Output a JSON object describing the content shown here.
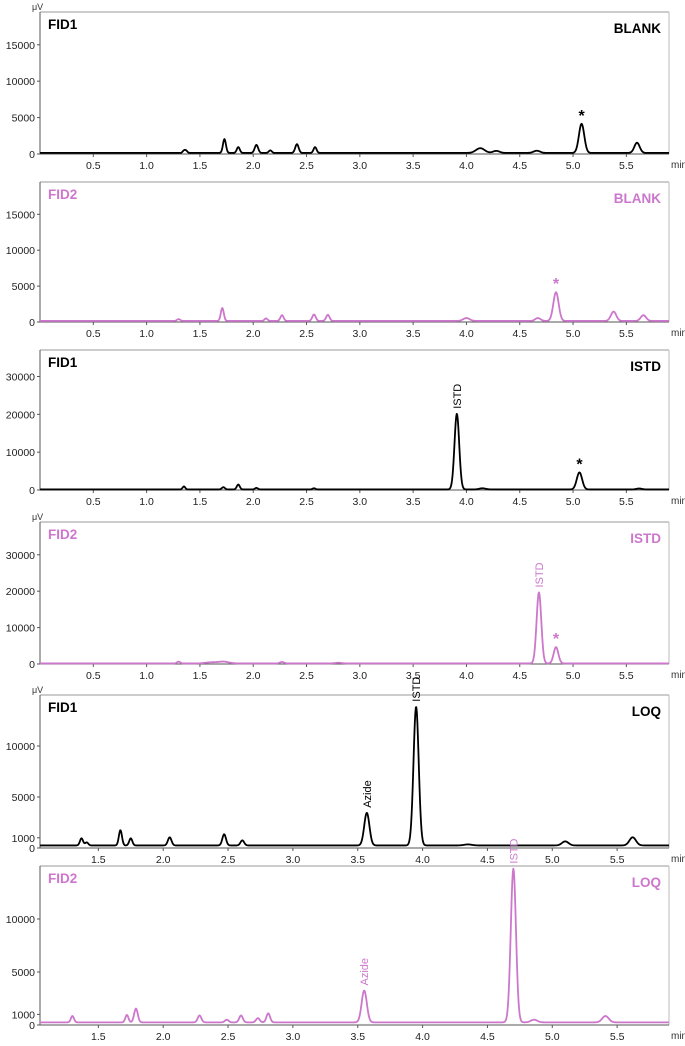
{
  "colors": {
    "fid1": "#000000",
    "fid2": "#cc77cc",
    "axis": "#555555"
  },
  "chart_data": [
    {
      "type": "line",
      "unit": "μV",
      "x_unit": "min",
      "detector_label": "FID1",
      "sample_label": "BLANK",
      "color": "#000000",
      "xlim": [
        0,
        5.9
      ],
      "ylim": [
        0,
        19500
      ],
      "yticks": [
        0,
        5000,
        10000,
        15000
      ],
      "xticks": [
        0.5,
        1.0,
        1.5,
        2.0,
        2.5,
        3.0,
        3.5,
        4.0,
        4.5,
        5.0,
        5.5
      ],
      "baseline": 150,
      "peaks": [
        [
          1.35,
          300,
          0.012
        ],
        [
          1.37,
          300,
          0.012
        ],
        [
          1.73,
          1900,
          0.014
        ],
        [
          1.86,
          800,
          0.014
        ],
        [
          2.03,
          1100,
          0.016
        ],
        [
          2.16,
          350,
          0.014
        ],
        [
          2.41,
          1200,
          0.016
        ],
        [
          2.58,
          800,
          0.014
        ],
        [
          4.13,
          650,
          0.04
        ],
        [
          4.28,
          280,
          0.03
        ],
        [
          4.66,
          300,
          0.03
        ],
        [
          5.08,
          4000,
          0.025
        ],
        [
          5.6,
          1400,
          0.025
        ]
      ],
      "annotations": [
        {
          "text": "*",
          "x": 5.08,
          "y": 4000
        }
      ]
    },
    {
      "type": "line",
      "unit": "",
      "x_unit": "min",
      "detector_label": "FID2",
      "sample_label": "BLANK",
      "color": "#cc77cc",
      "xlim": [
        0,
        5.9
      ],
      "ylim": [
        0,
        19500
      ],
      "yticks": [
        0,
        5000,
        10000,
        15000
      ],
      "xticks": [
        0.5,
        1.0,
        1.5,
        2.0,
        2.5,
        3.0,
        3.5,
        4.0,
        4.5,
        5.0,
        5.5
      ],
      "baseline": 150,
      "peaks": [
        [
          1.3,
          250,
          0.015
        ],
        [
          1.71,
          1800,
          0.014
        ],
        [
          2.12,
          350,
          0.014
        ],
        [
          2.27,
          800,
          0.015
        ],
        [
          2.57,
          900,
          0.016
        ],
        [
          2.7,
          850,
          0.016
        ],
        [
          4.0,
          400,
          0.03
        ],
        [
          4.67,
          400,
          0.025
        ],
        [
          4.84,
          4000,
          0.025
        ],
        [
          5.38,
          1300,
          0.025
        ],
        [
          5.66,
          800,
          0.025
        ]
      ],
      "annotations": [
        {
          "text": "*",
          "x": 4.84,
          "y": 4000
        }
      ]
    },
    {
      "type": "line",
      "unit": "",
      "x_unit": "min",
      "detector_label": "FID1",
      "sample_label": "ISTD",
      "color": "#000000",
      "xlim": [
        0,
        5.9
      ],
      "ylim": [
        0,
        37000
      ],
      "yticks": [
        0,
        10000,
        20000,
        30000
      ],
      "xticks": [
        0.5,
        1.0,
        1.5,
        2.0,
        2.5,
        3.0,
        3.5,
        4.0,
        4.5,
        5.0,
        5.5
      ],
      "baseline": 150,
      "peaks": [
        [
          1.35,
          800,
          0.012
        ],
        [
          1.72,
          600,
          0.014
        ],
        [
          1.86,
          1300,
          0.014
        ],
        [
          2.03,
          400,
          0.014
        ],
        [
          2.57,
          300,
          0.014
        ],
        [
          3.91,
          20000,
          0.022
        ],
        [
          4.15,
          300,
          0.03
        ],
        [
          5.06,
          4500,
          0.025
        ],
        [
          5.62,
          250,
          0.025
        ]
      ],
      "annotations": [
        {
          "text": "ISTD",
          "x": 3.91,
          "y": 20000,
          "rotate": true
        },
        {
          "text": "*",
          "x": 5.06,
          "y": 4500
        }
      ]
    },
    {
      "type": "line",
      "unit": "μV",
      "x_unit": "min",
      "detector_label": "FID2",
      "sample_label": "ISTD",
      "color": "#cc77cc",
      "xlim": [
        0,
        5.9
      ],
      "ylim": [
        0,
        39000
      ],
      "yticks": [
        0,
        10000,
        20000,
        30000
      ],
      "xticks": [
        0.5,
        1.0,
        1.5,
        2.0,
        2.5,
        3.0,
        3.5,
        4.0,
        4.5,
        5.0,
        5.5
      ],
      "baseline": 150,
      "peaks": [
        [
          1.3,
          500,
          0.015
        ],
        [
          1.6,
          300,
          0.05
        ],
        [
          1.72,
          500,
          0.05
        ],
        [
          2.27,
          400,
          0.02
        ],
        [
          2.8,
          200,
          0.03
        ],
        [
          4.68,
          19500,
          0.022
        ],
        [
          4.84,
          4500,
          0.022
        ]
      ],
      "annotations": [
        {
          "text": "ISTD",
          "x": 4.68,
          "y": 19500,
          "rotate": true
        },
        {
          "text": "*",
          "x": 4.84,
          "y": 4500
        }
      ]
    },
    {
      "type": "line",
      "unit": "μV",
      "x_unit": "min",
      "detector_label": "FID1",
      "sample_label": "LOQ",
      "color": "#000000",
      "xlim": [
        1.05,
        5.9
      ],
      "ylim": [
        0,
        15000
      ],
      "yticks": [
        0,
        1000,
        5000,
        10000
      ],
      "xticks": [
        1.5,
        2.0,
        2.5,
        3.0,
        3.5,
        4.0,
        4.5,
        5.0,
        5.5
      ],
      "baseline": 250,
      "peaks": [
        [
          1.37,
          700,
          0.012
        ],
        [
          1.41,
          300,
          0.012
        ],
        [
          1.67,
          1500,
          0.012
        ],
        [
          1.75,
          700,
          0.012
        ],
        [
          2.05,
          800,
          0.014
        ],
        [
          2.47,
          1100,
          0.014
        ],
        [
          2.61,
          500,
          0.014
        ],
        [
          3.57,
          3200,
          0.02
        ],
        [
          3.95,
          13600,
          0.02
        ],
        [
          4.35,
          100,
          0.03
        ],
        [
          5.1,
          400,
          0.025
        ],
        [
          5.62,
          800,
          0.025
        ]
      ],
      "annotations": [
        {
          "text": "Azide",
          "x": 3.57,
          "y": 3200,
          "rotate": true
        },
        {
          "text": "ISTD",
          "x": 3.95,
          "y": 13600,
          "rotate": true
        }
      ]
    },
    {
      "type": "line",
      "unit": "",
      "x_unit": "min",
      "detector_label": "FID2",
      "sample_label": "LOQ",
      "color": "#cc77cc",
      "xlim": [
        1.05,
        5.9
      ],
      "ylim": [
        0,
        15000
      ],
      "yticks": [
        0,
        1000,
        5000,
        10000
      ],
      "xticks": [
        1.5,
        2.0,
        2.5,
        3.0,
        3.5,
        4.0,
        4.5,
        5.0,
        5.5
      ],
      "baseline": 250,
      "peaks": [
        [
          1.3,
          600,
          0.012
        ],
        [
          1.72,
          700,
          0.012
        ],
        [
          1.79,
          1300,
          0.014
        ],
        [
          2.28,
          650,
          0.014
        ],
        [
          2.49,
          250,
          0.014
        ],
        [
          2.6,
          650,
          0.014
        ],
        [
          2.73,
          400,
          0.014
        ],
        [
          2.81,
          850,
          0.014
        ],
        [
          3.55,
          3000,
          0.02
        ],
        [
          4.7,
          14500,
          0.02
        ],
        [
          4.86,
          250,
          0.025
        ],
        [
          5.41,
          600,
          0.025
        ]
      ],
      "annotations": [
        {
          "text": "Azide",
          "x": 3.55,
          "y": 3000,
          "rotate": true
        },
        {
          "text": "ISTD",
          "x": 4.7,
          "y": 14500,
          "rotate": true
        }
      ]
    }
  ]
}
